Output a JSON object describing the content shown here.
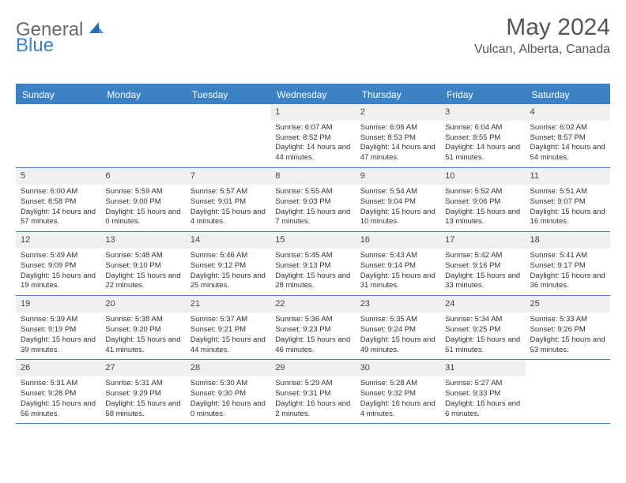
{
  "logo": {
    "word1": "General",
    "word2": "Blue"
  },
  "title": "May 2024",
  "location": "Vulcan, Alberta, Canada",
  "colors": {
    "accent": "#3b82c4",
    "header_bg": "#3b82c4",
    "header_text": "#ffffff",
    "daynum_bg": "#eef0f2",
    "text": "#333333",
    "title_color": "#555555",
    "rule_color": "#3b82c4"
  },
  "day_names": [
    "Sunday",
    "Monday",
    "Tuesday",
    "Wednesday",
    "Thursday",
    "Friday",
    "Saturday"
  ],
  "weeks": [
    [
      {
        "day": "",
        "sunrise": "",
        "sunset": "",
        "daylight": ""
      },
      {
        "day": "",
        "sunrise": "",
        "sunset": "",
        "daylight": ""
      },
      {
        "day": "",
        "sunrise": "",
        "sunset": "",
        "daylight": ""
      },
      {
        "day": "1",
        "sunrise": "Sunrise: 6:07 AM",
        "sunset": "Sunset: 8:52 PM",
        "daylight": "Daylight: 14 hours and 44 minutes."
      },
      {
        "day": "2",
        "sunrise": "Sunrise: 6:06 AM",
        "sunset": "Sunset: 8:53 PM",
        "daylight": "Daylight: 14 hours and 47 minutes."
      },
      {
        "day": "3",
        "sunrise": "Sunrise: 6:04 AM",
        "sunset": "Sunset: 8:55 PM",
        "daylight": "Daylight: 14 hours and 51 minutes."
      },
      {
        "day": "4",
        "sunrise": "Sunrise: 6:02 AM",
        "sunset": "Sunset: 8:57 PM",
        "daylight": "Daylight: 14 hours and 54 minutes."
      }
    ],
    [
      {
        "day": "5",
        "sunrise": "Sunrise: 6:00 AM",
        "sunset": "Sunset: 8:58 PM",
        "daylight": "Daylight: 14 hours and 57 minutes."
      },
      {
        "day": "6",
        "sunrise": "Sunrise: 5:59 AM",
        "sunset": "Sunset: 9:00 PM",
        "daylight": "Daylight: 15 hours and 0 minutes."
      },
      {
        "day": "7",
        "sunrise": "Sunrise: 5:57 AM",
        "sunset": "Sunset: 9:01 PM",
        "daylight": "Daylight: 15 hours and 4 minutes."
      },
      {
        "day": "8",
        "sunrise": "Sunrise: 5:55 AM",
        "sunset": "Sunset: 9:03 PM",
        "daylight": "Daylight: 15 hours and 7 minutes."
      },
      {
        "day": "9",
        "sunrise": "Sunrise: 5:54 AM",
        "sunset": "Sunset: 9:04 PM",
        "daylight": "Daylight: 15 hours and 10 minutes."
      },
      {
        "day": "10",
        "sunrise": "Sunrise: 5:52 AM",
        "sunset": "Sunset: 9:06 PM",
        "daylight": "Daylight: 15 hours and 13 minutes."
      },
      {
        "day": "11",
        "sunrise": "Sunrise: 5:51 AM",
        "sunset": "Sunset: 9:07 PM",
        "daylight": "Daylight: 15 hours and 16 minutes."
      }
    ],
    [
      {
        "day": "12",
        "sunrise": "Sunrise: 5:49 AM",
        "sunset": "Sunset: 9:09 PM",
        "daylight": "Daylight: 15 hours and 19 minutes."
      },
      {
        "day": "13",
        "sunrise": "Sunrise: 5:48 AM",
        "sunset": "Sunset: 9:10 PM",
        "daylight": "Daylight: 15 hours and 22 minutes."
      },
      {
        "day": "14",
        "sunrise": "Sunrise: 5:46 AM",
        "sunset": "Sunset: 9:12 PM",
        "daylight": "Daylight: 15 hours and 25 minutes."
      },
      {
        "day": "15",
        "sunrise": "Sunrise: 5:45 AM",
        "sunset": "Sunset: 9:13 PM",
        "daylight": "Daylight: 15 hours and 28 minutes."
      },
      {
        "day": "16",
        "sunrise": "Sunrise: 5:43 AM",
        "sunset": "Sunset: 9:14 PM",
        "daylight": "Daylight: 15 hours and 31 minutes."
      },
      {
        "day": "17",
        "sunrise": "Sunrise: 5:42 AM",
        "sunset": "Sunset: 9:16 PM",
        "daylight": "Daylight: 15 hours and 33 minutes."
      },
      {
        "day": "18",
        "sunrise": "Sunrise: 5:41 AM",
        "sunset": "Sunset: 9:17 PM",
        "daylight": "Daylight: 15 hours and 36 minutes."
      }
    ],
    [
      {
        "day": "19",
        "sunrise": "Sunrise: 5:39 AM",
        "sunset": "Sunset: 9:19 PM",
        "daylight": "Daylight: 15 hours and 39 minutes."
      },
      {
        "day": "20",
        "sunrise": "Sunrise: 5:38 AM",
        "sunset": "Sunset: 9:20 PM",
        "daylight": "Daylight: 15 hours and 41 minutes."
      },
      {
        "day": "21",
        "sunrise": "Sunrise: 5:37 AM",
        "sunset": "Sunset: 9:21 PM",
        "daylight": "Daylight: 15 hours and 44 minutes."
      },
      {
        "day": "22",
        "sunrise": "Sunrise: 5:36 AM",
        "sunset": "Sunset: 9:23 PM",
        "daylight": "Daylight: 15 hours and 46 minutes."
      },
      {
        "day": "23",
        "sunrise": "Sunrise: 5:35 AM",
        "sunset": "Sunset: 9:24 PM",
        "daylight": "Daylight: 15 hours and 49 minutes."
      },
      {
        "day": "24",
        "sunrise": "Sunrise: 5:34 AM",
        "sunset": "Sunset: 9:25 PM",
        "daylight": "Daylight: 15 hours and 51 minutes."
      },
      {
        "day": "25",
        "sunrise": "Sunrise: 5:33 AM",
        "sunset": "Sunset: 9:26 PM",
        "daylight": "Daylight: 15 hours and 53 minutes."
      }
    ],
    [
      {
        "day": "26",
        "sunrise": "Sunrise: 5:31 AM",
        "sunset": "Sunset: 9:28 PM",
        "daylight": "Daylight: 15 hours and 56 minutes."
      },
      {
        "day": "27",
        "sunrise": "Sunrise: 5:31 AM",
        "sunset": "Sunset: 9:29 PM",
        "daylight": "Daylight: 15 hours and 58 minutes."
      },
      {
        "day": "28",
        "sunrise": "Sunrise: 5:30 AM",
        "sunset": "Sunset: 9:30 PM",
        "daylight": "Daylight: 16 hours and 0 minutes."
      },
      {
        "day": "29",
        "sunrise": "Sunrise: 5:29 AM",
        "sunset": "Sunset: 9:31 PM",
        "daylight": "Daylight: 16 hours and 2 minutes."
      },
      {
        "day": "30",
        "sunrise": "Sunrise: 5:28 AM",
        "sunset": "Sunset: 9:32 PM",
        "daylight": "Daylight: 16 hours and 4 minutes."
      },
      {
        "day": "31",
        "sunrise": "Sunrise: 5:27 AM",
        "sunset": "Sunset: 9:33 PM",
        "daylight": "Daylight: 16 hours and 6 minutes."
      },
      {
        "day": "",
        "sunrise": "",
        "sunset": "",
        "daylight": ""
      }
    ]
  ]
}
